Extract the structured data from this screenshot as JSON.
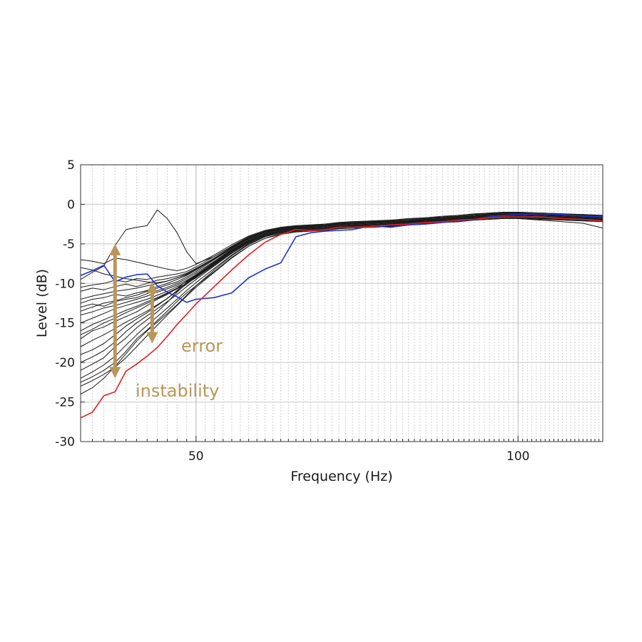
{
  "chart_data": {
    "type": "line",
    "xlabel": "Frequency (Hz)",
    "ylabel": "Level (dB)",
    "x_scale": "log",
    "xlim": [
      39,
      120
    ],
    "ylim": [
      -30,
      5
    ],
    "grid": true,
    "x_ticks": [
      50,
      100
    ],
    "y_ticks": [
      5,
      0,
      -5,
      -10,
      -15,
      -20,
      -25,
      -30
    ],
    "x": [
      39,
      40,
      41,
      42,
      43,
      44,
      45,
      46,
      47,
      48,
      49,
      50,
      52,
      54,
      56,
      58,
      60,
      62,
      64,
      66,
      68,
      70,
      73,
      76,
      79,
      82,
      85,
      88,
      91,
      94,
      97,
      100,
      105,
      110,
      115,
      120
    ],
    "series": [
      {
        "color": "#e02020",
        "values": [
          -27.0,
          -26.3,
          -24.2,
          -23.7,
          -21.1,
          -20.2,
          -19.2,
          -18.1,
          -16.7,
          -15.2,
          -13.9,
          -12.6,
          -10.4,
          -8.3,
          -6.4,
          -4.8,
          -3.8,
          -3.2,
          -3.3,
          -3.2,
          -2.9,
          -2.9,
          -2.8,
          -2.6,
          -2.5,
          -2.3,
          -2.2,
          -2.0,
          -1.9,
          -1.7,
          -1.6,
          -1.6,
          -1.6,
          -1.8,
          -1.9,
          -2.1
        ]
      },
      {
        "color": "#1d35c8",
        "values": [
          -9.0,
          -8.4,
          -7.7,
          -9.8,
          -9.2,
          -8.9,
          -8.8,
          -10.3,
          -11.1,
          -11.7,
          -12.4,
          -12.0,
          -11.8,
          -11.2,
          -9.3,
          -8.2,
          -7.4,
          -4.1,
          -3.6,
          -3.4,
          -3.3,
          -3.2,
          -2.7,
          -2.9,
          -2.6,
          -2.5,
          -2.3,
          -2.1,
          -1.9,
          -1.6,
          -1.4,
          -1.3,
          -1.2,
          -1.3,
          -1.5,
          -1.6
        ]
      },
      {
        "color": "#1a1a1a",
        "values": [
          -21.0,
          -20.2,
          -19.4,
          -18.0,
          -16.9,
          -15.6,
          -14.6,
          -13.6,
          -12.4,
          -11.1,
          -10.0,
          -9.1,
          -7.5,
          -6.0,
          -4.8,
          -3.9,
          -3.5,
          -3.3,
          -3.2,
          -3.1,
          -2.8,
          -2.7,
          -2.6,
          -2.5,
          -2.3,
          -2.2,
          -2.0,
          -1.9,
          -1.7,
          -1.6,
          -1.5,
          -1.5,
          -1.6,
          -1.7,
          -1.8,
          -1.9
        ]
      },
      {
        "color": "#1a1a1a",
        "values": [
          -17.0,
          -16.0,
          -15.5,
          -14.8,
          -14.2,
          -13.6,
          -12.8,
          -12.0,
          -11.4,
          -10.6,
          -9.7,
          -8.9,
          -7.3,
          -5.8,
          -4.6,
          -3.7,
          -3.2,
          -3.0,
          -2.9,
          -2.8,
          -2.6,
          -2.5,
          -2.4,
          -2.3,
          -2.2,
          -2.0,
          -1.9,
          -1.7,
          -1.6,
          -1.4,
          -1.3,
          -1.3,
          -1.4,
          -1.5,
          -1.6,
          -1.7
        ]
      },
      {
        "color": "#1a1a1a",
        "values": [
          -13.5,
          -13.0,
          -12.5,
          -12.2,
          -11.8,
          -11.5,
          -11.0,
          -10.6,
          -10.2,
          -9.8,
          -9.2,
          -8.5,
          -7.0,
          -5.6,
          -4.4,
          -3.6,
          -3.1,
          -2.9,
          -2.8,
          -2.7,
          -2.5,
          -2.4,
          -2.3,
          -2.2,
          -2.1,
          -1.9,
          -1.8,
          -1.6,
          -1.5,
          -1.3,
          -1.2,
          -1.2,
          -1.3,
          -1.4,
          -1.5,
          -1.6
        ]
      },
      {
        "color": "#1a1a1a",
        "values": [
          -11.0,
          -10.6,
          -10.8,
          -10.4,
          -10.1,
          -10.4,
          -10.0,
          -9.6,
          -9.4,
          -9.1,
          -8.7,
          -8.1,
          -6.8,
          -5.4,
          -4.2,
          -3.4,
          -3.0,
          -2.8,
          -2.7,
          -2.6,
          -2.4,
          -2.3,
          -2.2,
          -2.1,
          -2.0,
          -1.8,
          -1.7,
          -1.5,
          -1.4,
          -1.2,
          -1.1,
          -1.1,
          -1.2,
          -1.3,
          -1.4,
          -1.5
        ]
      },
      {
        "color": "#1a1a1a",
        "values": [
          -7.0,
          -7.2,
          -7.5,
          -6.8,
          -7.0,
          -7.3,
          -7.6,
          -7.9,
          -8.2,
          -8.4,
          -8.1,
          -7.6,
          -6.4,
          -5.1,
          -4.0,
          -3.3,
          -2.9,
          -2.7,
          -2.6,
          -2.5,
          -2.3,
          -2.2,
          -2.1,
          -2.0,
          -1.9,
          -1.7,
          -1.6,
          -1.4,
          -1.3,
          -1.1,
          -1.0,
          -1.0,
          -1.1,
          -1.2,
          -1.3,
          -1.4
        ]
      },
      {
        "color": "#1a1a1a",
        "values": [
          -22.5,
          -21.8,
          -21.0,
          -20.0,
          -18.6,
          -17.0,
          -15.9,
          -14.7,
          -13.5,
          -12.3,
          -11.2,
          -10.3,
          -8.5,
          -6.7,
          -5.3,
          -4.3,
          -3.7,
          -3.4,
          -3.3,
          -3.2,
          -3.0,
          -2.9,
          -2.8,
          -2.7,
          -2.5,
          -2.4,
          -2.2,
          -2.1,
          -1.9,
          -1.8,
          -1.7,
          -1.7,
          -1.8,
          -1.9,
          -2.0,
          -2.1
        ]
      },
      {
        "color": "#1a1a1a",
        "values": [
          -15.0,
          -14.4,
          -13.8,
          -13.2,
          -12.8,
          -12.4,
          -12.0,
          -11.5,
          -11.0,
          -10.4,
          -9.8,
          -9.0,
          -7.4,
          -5.9,
          -4.7,
          -3.8,
          -3.3,
          -3.1,
          -3.0,
          -2.9,
          -2.7,
          -2.6,
          -2.5,
          -2.4,
          -2.2,
          -2.1,
          -1.9,
          -1.8,
          -1.6,
          -1.5,
          -1.4,
          -1.4,
          -1.5,
          -1.6,
          -1.7,
          -1.8
        ]
      },
      {
        "color": "#1a1a1a",
        "values": [
          -9.5,
          -8.6,
          -7.8,
          -5.2,
          -3.2,
          -2.9,
          -2.7,
          -0.7,
          -1.8,
          -3.6,
          -6.0,
          -7.5,
          -6.6,
          -5.3,
          -4.1,
          -3.4,
          -2.9,
          -2.7,
          -2.6,
          -2.5,
          -2.3,
          -2.2,
          -2.1,
          -2.0,
          -1.8,
          -1.7,
          -1.5,
          -1.4,
          -1.2,
          -1.1,
          -1.0,
          -1.0,
          -1.1,
          -1.2,
          -1.3,
          -1.4
        ]
      },
      {
        "color": "#1a1a1a",
        "values": [
          -19.0,
          -18.4,
          -17.6,
          -16.5,
          -15.4,
          -14.5,
          -13.7,
          -12.8,
          -11.9,
          -10.9,
          -9.9,
          -9.0,
          -7.4,
          -5.9,
          -4.7,
          -3.8,
          -3.3,
          -3.1,
          -3.0,
          -2.9,
          -2.7,
          -2.6,
          -2.5,
          -2.4,
          -2.2,
          -2.1,
          -1.9,
          -1.8,
          -1.6,
          -1.5,
          -1.4,
          -1.4,
          -1.5,
          -1.6,
          -1.7,
          -1.8
        ]
      },
      {
        "color": "#1a1a1a",
        "values": [
          -24.0,
          -23.2,
          -22.0,
          -20.5,
          -18.9,
          -17.3,
          -16.0,
          -14.9,
          -13.8,
          -12.7,
          -11.5,
          -10.3,
          -8.3,
          -6.5,
          -5.1,
          -4.1,
          -3.6,
          -3.4,
          -3.3,
          -3.2,
          -3.0,
          -2.9,
          -2.8,
          -2.7,
          -2.5,
          -2.4,
          -2.2,
          -2.1,
          -1.9,
          -1.8,
          -1.7,
          -1.7,
          -1.8,
          -1.9,
          -2.0,
          -2.1
        ]
      },
      {
        "color": "#1a1a1a",
        "values": [
          -12.5,
          -12.0,
          -11.8,
          -11.4,
          -11.6,
          -11.2,
          -10.9,
          -10.4,
          -10.0,
          -9.5,
          -9.0,
          -8.3,
          -6.9,
          -5.5,
          -4.3,
          -3.5,
          -3.1,
          -2.9,
          -2.8,
          -2.7,
          -2.5,
          -2.4,
          -2.3,
          -2.2,
          -2.1,
          -1.9,
          -1.8,
          -1.6,
          -1.5,
          -1.3,
          -1.2,
          -1.2,
          -1.3,
          -1.4,
          -1.5,
          -1.6
        ]
      },
      {
        "color": "#1a1a1a",
        "values": [
          -16.0,
          -15.2,
          -14.6,
          -14.0,
          -13.4,
          -12.9,
          -12.3,
          -11.8,
          -11.2,
          -10.6,
          -10.0,
          -9.3,
          -7.7,
          -6.1,
          -4.9,
          -4.0,
          -3.5,
          -3.3,
          -3.2,
          -3.1,
          -2.9,
          -2.8,
          -2.7,
          -2.6,
          -2.4,
          -2.3,
          -2.1,
          -2.0,
          -1.8,
          -1.7,
          -1.6,
          -1.6,
          -1.7,
          -1.8,
          -1.9,
          -2.0
        ]
      },
      {
        "color": "#1a1a1a",
        "values": [
          -20.0,
          -19.3,
          -18.5,
          -17.4,
          -16.1,
          -15.0,
          -14.1,
          -13.2,
          -12.3,
          -11.4,
          -10.4,
          -9.5,
          -7.8,
          -6.2,
          -4.9,
          -4.0,
          -3.5,
          -3.3,
          -3.2,
          -3.1,
          -2.9,
          -2.8,
          -2.7,
          -2.6,
          -2.4,
          -2.3,
          -2.1,
          -2.0,
          -1.8,
          -1.7,
          -1.6,
          -1.6,
          -1.7,
          -1.8,
          -1.9,
          -2.0
        ]
      },
      {
        "color": "#1a1a1a",
        "values": [
          -10.5,
          -10.2,
          -10.0,
          -9.6,
          -9.8,
          -9.4,
          -9.5,
          -9.2,
          -9.0,
          -8.8,
          -8.5,
          -7.9,
          -6.6,
          -5.3,
          -4.2,
          -3.5,
          -3.2,
          -3.1,
          -3.0,
          -3.0,
          -2.9,
          -2.9,
          -2.8,
          -2.8,
          -2.6,
          -2.5,
          -2.3,
          -2.2,
          -1.9,
          -1.7,
          -1.6,
          -1.8,
          -2.0,
          -2.2,
          -2.4,
          -3.0
        ]
      },
      {
        "color": "#1a1a1a",
        "values": [
          -18.0,
          -17.2,
          -16.5,
          -15.7,
          -14.9,
          -14.2,
          -13.5,
          -12.7,
          -11.9,
          -11.0,
          -10.1,
          -9.2,
          -7.6,
          -6.0,
          -4.8,
          -3.9,
          -3.4,
          -3.2,
          -3.1,
          -3.0,
          -2.8,
          -2.7,
          -2.6,
          -2.5,
          -2.3,
          -2.2,
          -2.0,
          -1.9,
          -1.7,
          -1.6,
          -1.5,
          -1.5,
          -1.6,
          -1.7,
          -1.8,
          -1.9
        ]
      },
      {
        "color": "#1a1a1a",
        "values": [
          -14.0,
          -13.6,
          -13.1,
          -12.8,
          -12.4,
          -12.0,
          -11.6,
          -11.1,
          -10.7,
          -10.2,
          -9.6,
          -8.9,
          -7.3,
          -5.8,
          -4.6,
          -3.7,
          -3.2,
          -3.0,
          -2.9,
          -2.8,
          -2.6,
          -2.5,
          -2.4,
          -2.3,
          -2.2,
          -2.0,
          -1.9,
          -1.7,
          -1.6,
          -1.4,
          -1.3,
          -1.3,
          -1.4,
          -1.5,
          -1.6,
          -1.7
        ]
      },
      {
        "color": "#1a1a1a",
        "values": [
          -22.0,
          -21.2,
          -20.3,
          -19.2,
          -17.8,
          -16.5,
          -15.3,
          -14.2,
          -13.1,
          -12.0,
          -10.9,
          -9.9,
          -8.1,
          -6.4,
          -5.0,
          -4.1,
          -3.6,
          -3.4,
          -3.3,
          -3.2,
          -3.0,
          -2.9,
          -2.8,
          -2.7,
          -2.5,
          -2.4,
          -2.2,
          -2.1,
          -1.9,
          -1.8,
          -1.7,
          -1.7,
          -1.8,
          -1.9,
          -2.0,
          -2.1
        ]
      },
      {
        "color": "#1a1a1a",
        "values": [
          -8.0,
          -8.3,
          -8.8,
          -9.1,
          -9.4,
          -9.6,
          -9.8,
          -9.9,
          -9.7,
          -9.3,
          -8.8,
          -8.2,
          -6.9,
          -5.5,
          -4.3,
          -3.5,
          -3.0,
          -2.8,
          -2.7,
          -2.6,
          -2.4,
          -2.3,
          -2.2,
          -2.1,
          -2.0,
          -1.8,
          -1.7,
          -1.5,
          -1.4,
          -1.2,
          -1.1,
          -1.1,
          -1.2,
          -1.3,
          -1.4,
          -1.5
        ]
      },
      {
        "color": "#1a1a1a",
        "values": [
          -16.5,
          -15.8,
          -15.0,
          -14.4,
          -13.7,
          -13.1,
          -12.5,
          -11.9,
          -11.3,
          -10.7,
          -10.0,
          -9.2,
          -7.5,
          -5.9,
          -4.7,
          -3.8,
          -3.4,
          -3.2,
          -3.1,
          -3.0,
          -2.8,
          -2.7,
          -2.6,
          -2.5,
          -2.3,
          -2.2,
          -2.0,
          -1.9,
          -1.7,
          -1.6,
          -1.5,
          -1.5,
          -1.6,
          -1.7,
          -1.8,
          -1.9
        ]
      },
      {
        "color": "#1a1a1a",
        "values": [
          -12.0,
          -11.6,
          -11.3,
          -11.0,
          -10.8,
          -10.6,
          -10.3,
          -10.0,
          -9.7,
          -9.3,
          -8.9,
          -8.3,
          -6.9,
          -5.5,
          -4.3,
          -3.5,
          -3.1,
          -2.9,
          -2.8,
          -2.7,
          -2.5,
          -2.4,
          -2.3,
          -2.2,
          -2.1,
          -1.9,
          -1.8,
          -1.6,
          -1.5,
          -1.3,
          -1.2,
          -1.2,
          -1.3,
          -1.4,
          -1.5,
          -1.6
        ]
      },
      {
        "color": "#1a1a1a",
        "values": [
          -23.0,
          -22.3,
          -21.5,
          -20.6,
          -19.4,
          -18.0,
          -16.6,
          -15.3,
          -14.0,
          -12.8,
          -11.6,
          -10.5,
          -8.6,
          -6.8,
          -5.3,
          -4.3,
          -3.8,
          -3.5,
          -3.4,
          -3.3,
          -3.1,
          -3.0,
          -2.9,
          -2.8,
          -2.6,
          -2.5,
          -2.3,
          -2.2,
          -2.0,
          -1.9,
          -1.8,
          -1.8,
          -1.9,
          -2.0,
          -2.1,
          -2.2
        ]
      },
      {
        "color": "#1a1a1a",
        "values": [
          -13.0,
          -12.6,
          -12.9,
          -12.3,
          -12.0,
          -11.8,
          -11.3,
          -10.9,
          -10.5,
          -10.0,
          -9.4,
          -8.7,
          -7.2,
          -5.7,
          -4.5,
          -3.6,
          -3.1,
          -2.9,
          -2.8,
          -2.7,
          -2.5,
          -2.4,
          -2.3,
          -2.2,
          -2.1,
          -1.9,
          -1.8,
          -1.6,
          -1.5,
          -1.3,
          -1.2,
          -1.2,
          -1.3,
          -1.4,
          -1.5,
          -1.6
        ]
      }
    ],
    "annotations": [
      {
        "text": "error",
        "color": "#b8975a"
      },
      {
        "text": "instability",
        "color": "#b8975a"
      }
    ]
  }
}
